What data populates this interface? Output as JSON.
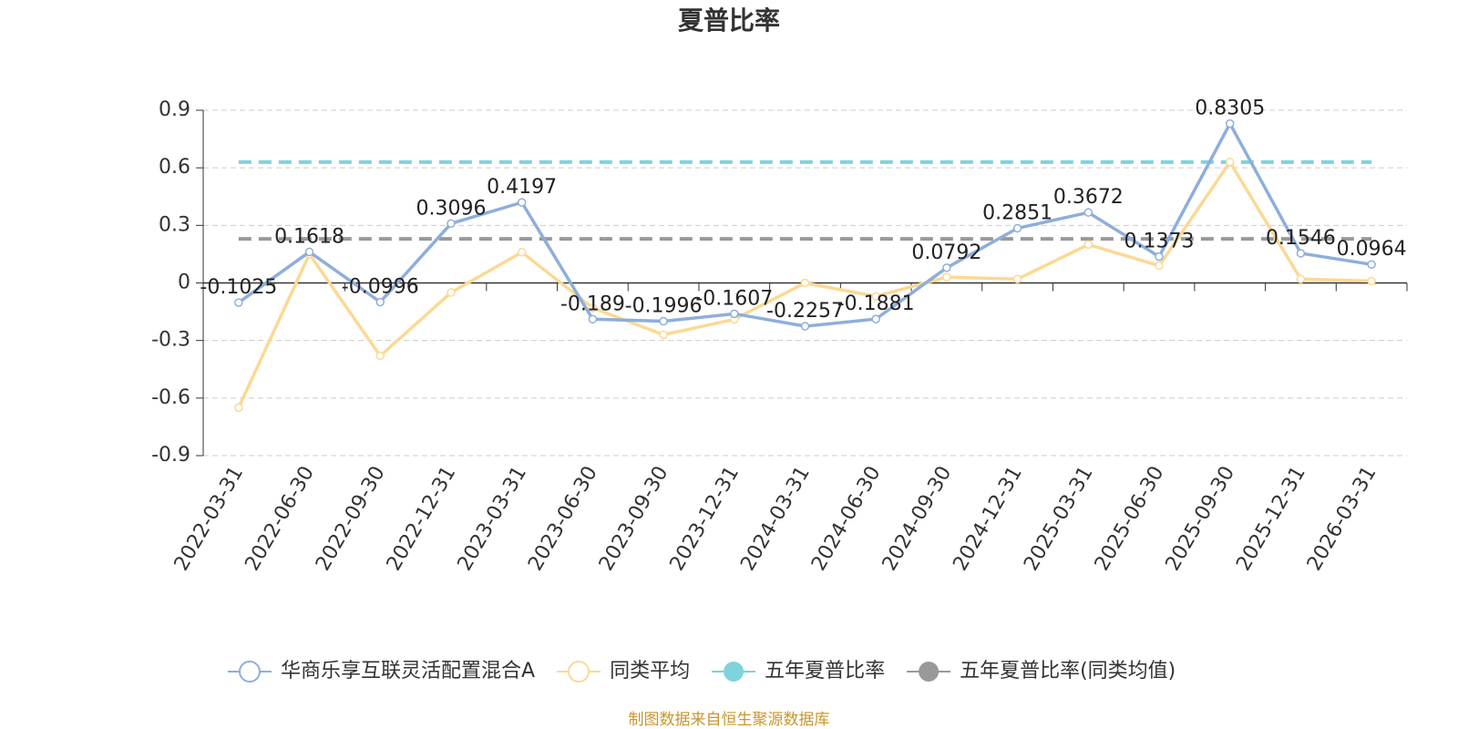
{
  "chart_data": {
    "type": "line",
    "title": "夏普比率",
    "categories": [
      "2022-03-31",
      "2022-06-30",
      "2022-09-30",
      "2022-12-31",
      "2023-03-31",
      "2023-06-30",
      "2023-09-30",
      "2023-12-31",
      "2024-03-31",
      "2024-06-30",
      "2024-09-30",
      "2024-12-31",
      "2025-03-31",
      "2025-06-30",
      "2025-09-30",
      "2025-12-31",
      "2026-03-31"
    ],
    "series": [
      {
        "name": "华商乐享互联灵活配置混合A",
        "color": "#8eaedb",
        "values": [
          -0.1025,
          0.1618,
          -0.0996,
          0.3096,
          0.4197,
          -0.189,
          -0.1996,
          -0.1607,
          -0.2257,
          -0.1881,
          0.0792,
          0.2851,
          0.3672,
          0.1373,
          0.8305,
          0.1546,
          0.0964
        ]
      },
      {
        "name": "同类平均",
        "color": "#fbd994",
        "values": [
          -0.65,
          0.15,
          -0.38,
          -0.05,
          0.16,
          -0.13,
          -0.27,
          -0.19,
          0.0,
          -0.07,
          0.03,
          0.02,
          0.2,
          0.09,
          0.63,
          0.02,
          0.01
        ]
      },
      {
        "name": "五年夏普比率",
        "color": "#7fd3dc",
        "value": 0.63
      },
      {
        "name": "五年夏普比率(同类均值)",
        "color": "#999999",
        "value": 0.23
      }
    ],
    "ylim": [
      -0.9,
      0.9
    ],
    "yticks": [
      -0.9,
      -0.6,
      -0.3,
      0,
      0.3,
      0.6,
      0.9
    ],
    "grid": true,
    "source": "制图数据来自恒生聚源数据库"
  }
}
